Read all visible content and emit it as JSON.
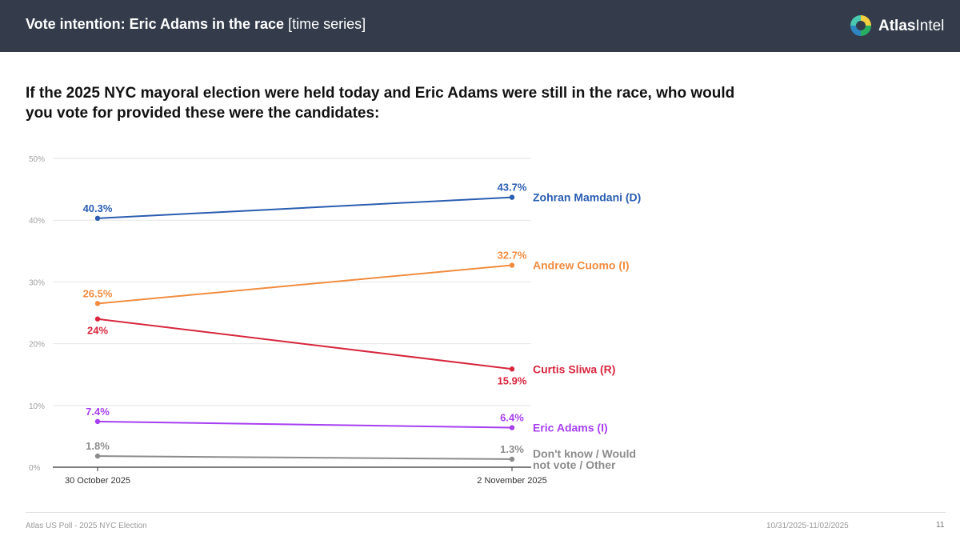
{
  "header": {
    "title": "Vote intention: Eric Adams in the race",
    "subtitle": "[time series]",
    "logo_text_bold": "Atlas",
    "logo_text": "Intel"
  },
  "question": "If the 2025 NYC mayoral election were held today and Eric Adams were still in the race, who would you vote for provided these were the candidates:",
  "chart_data": {
    "type": "line",
    "x": [
      "30 October 2025",
      "2 November 2025"
    ],
    "yticks": [
      "0%",
      "10%",
      "20%",
      "30%",
      "40%",
      "50%"
    ],
    "ylim": [
      0,
      50
    ],
    "grid": true,
    "series": [
      {
        "name": "Zohran Mamdani (D)",
        "color": "#2a5db0",
        "values": [
          40.3,
          43.7
        ],
        "labels": [
          "40.3%",
          "43.7%"
        ]
      },
      {
        "name": "Andrew Cuomo (I)",
        "color": "#f08c3f",
        "values": [
          26.5,
          32.7
        ],
        "labels": [
          "26.5%",
          "32.7%"
        ]
      },
      {
        "name": "Curtis Sliwa (R)",
        "color": "#d7263d",
        "values": [
          24,
          15.9
        ],
        "labels": [
          "24%",
          "15.9%"
        ]
      },
      {
        "name": "Eric Adams (I)",
        "color": "#a63ff0",
        "values": [
          7.4,
          6.4
        ],
        "labels": [
          "7.4%",
          "6.4%"
        ]
      },
      {
        "name": "Don't know / Would not vote / Other",
        "name_lines": [
          "Don't know / Would",
          "not vote / Other"
        ],
        "color": "#8c8c8c",
        "values": [
          1.8,
          1.3
        ],
        "labels": [
          "1.8%",
          "1.3%"
        ]
      }
    ]
  },
  "footer": {
    "left": "Atlas US Poll - 2025 NYC Election",
    "date_range": "10/31/2025-11/02/2025",
    "page": "11"
  }
}
